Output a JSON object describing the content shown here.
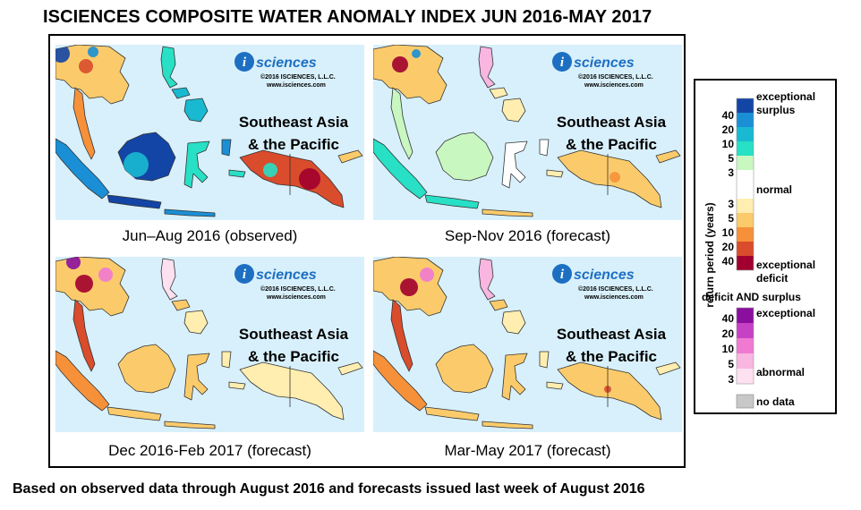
{
  "title": "ISCIENCES COMPOSITE WATER ANOMALY INDEX JUN 2016-MAY 2017",
  "footer": "Based on observed data through August 2016 and forecasts issued last week of August 2016",
  "logo": {
    "brand_letter": "i",
    "brand_text": "sciences",
    "copyright": "©2016 ISCIENCES, L.L.C.",
    "website": "www.isciences.com"
  },
  "region_label_line1": "Southeast Asia",
  "region_label_line2": "& the Pacific",
  "panels": [
    {
      "caption": "Jun–Aug 2016 (observed)",
      "dominant": "surplus"
    },
    {
      "caption": "Sep-Nov 2016 (forecast)",
      "dominant": "mild-deficit"
    },
    {
      "caption": "Dec 2016-Feb 2017 (forecast)",
      "dominant": "deficit"
    },
    {
      "caption": "Mar-May 2017 (forecast)",
      "dominant": "deficit"
    }
  ],
  "colors": {
    "ocean": "#d8f0fb",
    "normal": "#ffffff",
    "surplus": [
      "#c8f7c0",
      "#27e0c5",
      "#19b9d2",
      "#1a8fd6",
      "#1345a6"
    ],
    "deficit": [
      "#ffeeb0",
      "#fbcb6b",
      "#f6913a",
      "#d94c2c",
      "#a1002e"
    ],
    "both": [
      "#fde1f1",
      "#f8b6e0",
      "#f07ad2",
      "#c741c4",
      "#8a0f9f"
    ],
    "nodata": "#c8c8c8"
  },
  "legend": {
    "axis_label": "return period (years)",
    "surplus_label_line1": "exceptional",
    "surplus_label_line2": "surplus",
    "surplus_ticks": [
      "40",
      "20",
      "10",
      "5",
      "3"
    ],
    "normal_label": "normal",
    "deficit_ticks": [
      "3",
      "5",
      "10",
      "20",
      "40"
    ],
    "deficit_label_line1": "exceptional",
    "deficit_label_line2": "deficit",
    "both_title": "deficit AND surplus",
    "both_top_label": "exceptional",
    "both_ticks": [
      "40",
      "20",
      "10",
      "5",
      "3"
    ],
    "both_bottom_label": "abnormal",
    "nodata_label": "no data"
  }
}
